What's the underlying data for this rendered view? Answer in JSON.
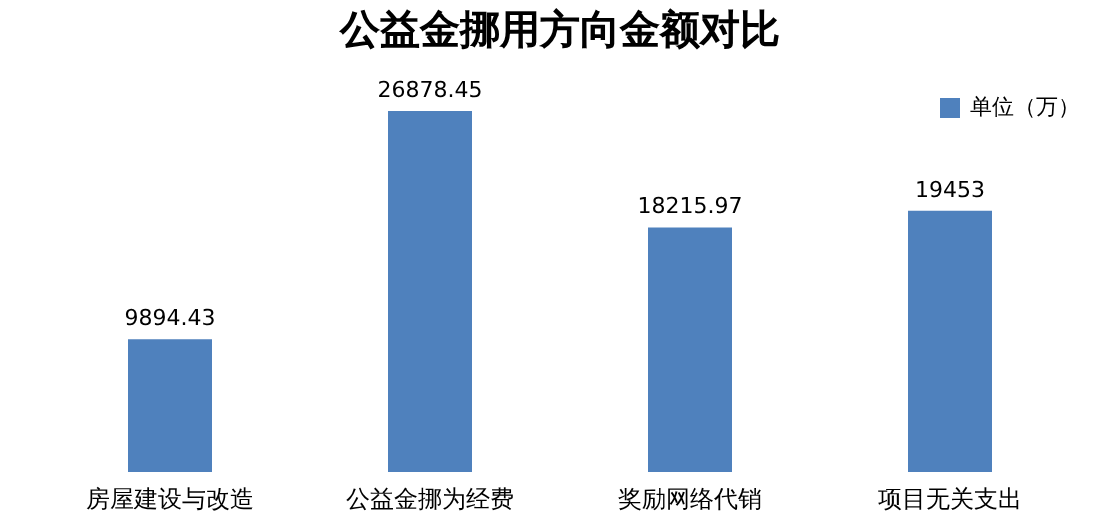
{
  "chart_data": {
    "type": "bar",
    "title": "公益金挪用方向金额对比",
    "categories": [
      "房屋建设与改造",
      "公益金挪为经费",
      "奖励网络代销",
      "项目无关支出"
    ],
    "series": [
      {
        "name": "单位（万）",
        "color": "#4f81bd",
        "values": [
          9894.43,
          26878.45,
          18215.97,
          19453
        ]
      }
    ],
    "data_labels": true,
    "legend": "top right"
  }
}
